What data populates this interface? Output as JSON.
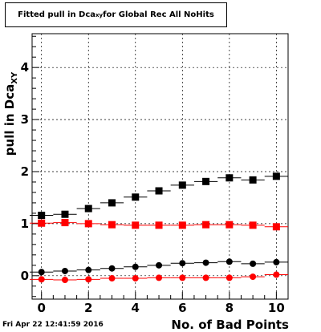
{
  "title": {
    "prefix": "Fitted pull in Dca",
    "subscript": "xy",
    "suffix": " for Global Rec All NoHits"
  },
  "timestamp": "Fri Apr 22 12:41:59 2016",
  "colors": {
    "black_series": "#000000",
    "red_series": "#ff0000",
    "frame": "#000000"
  },
  "chart_data": {
    "type": "scatter",
    "title": "Fitted pull in Dca_xy for Global Rec All NoHits",
    "xlabel": "No. of Bad Points",
    "ylabel": "pull in Dca_XY",
    "xlim": [
      -0.4,
      10.5
    ],
    "ylim": [
      -0.45,
      4.65
    ],
    "x_ticks": [
      0,
      2,
      4,
      6,
      8,
      10
    ],
    "y_ticks": [
      0,
      1,
      2,
      3,
      4
    ],
    "grid": true,
    "series": [
      {
        "marker": "square",
        "color": "#000000",
        "x": [
          0,
          1,
          2,
          3,
          4,
          5,
          6,
          7,
          8,
          9,
          10
        ],
        "values": [
          1.16,
          1.18,
          1.29,
          1.4,
          1.51,
          1.63,
          1.74,
          1.81,
          1.88,
          1.84,
          1.91
        ]
      },
      {
        "marker": "square",
        "color": "#ff0000",
        "x": [
          0,
          1,
          2,
          3,
          4,
          5,
          6,
          7,
          8,
          9,
          10
        ],
        "values": [
          1.01,
          1.02,
          1.0,
          0.98,
          0.97,
          0.97,
          0.97,
          0.98,
          0.98,
          0.97,
          0.94
        ]
      },
      {
        "marker": "circle",
        "color": "#000000",
        "x": [
          0,
          1,
          2,
          3,
          4,
          5,
          6,
          7,
          8,
          9,
          10
        ],
        "values": [
          0.07,
          0.09,
          0.11,
          0.14,
          0.17,
          0.2,
          0.24,
          0.25,
          0.27,
          0.23,
          0.26
        ]
      },
      {
        "marker": "circle",
        "color": "#ff0000",
        "x": [
          0,
          1,
          2,
          3,
          4,
          5,
          6,
          7,
          8,
          9,
          10
        ],
        "values": [
          -0.07,
          -0.08,
          -0.07,
          -0.05,
          -0.05,
          -0.04,
          -0.04,
          -0.04,
          -0.04,
          -0.02,
          0.02
        ]
      }
    ]
  }
}
